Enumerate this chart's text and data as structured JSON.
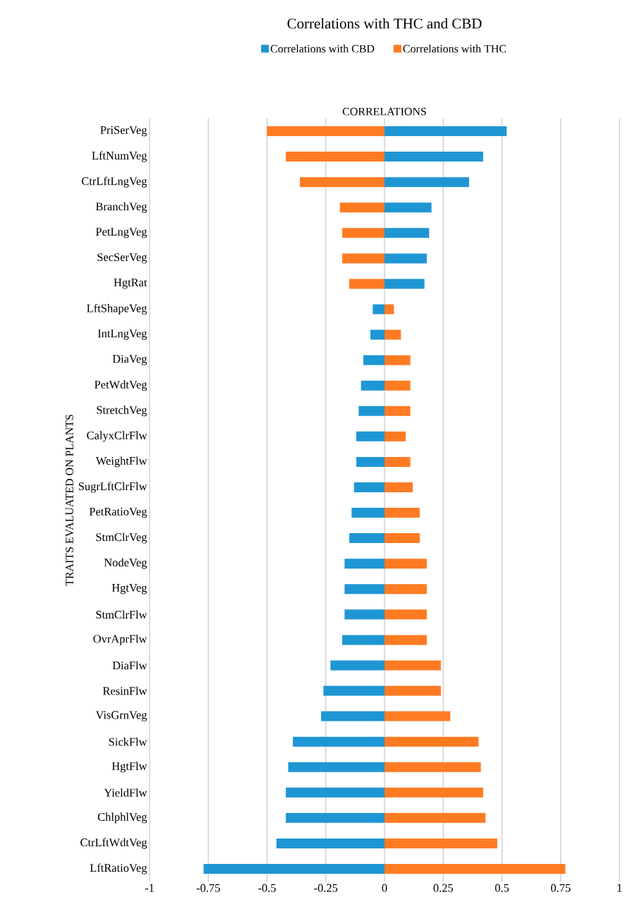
{
  "chart_data": {
    "type": "bar",
    "orientation": "horizontal",
    "title": "Correlations with THC and CBD",
    "xlabel": "CORRELATIONS",
    "ylabel": "TRAITS EVALUATED ON PLANTS",
    "categories": [
      "PriSerVeg",
      "LftNumVeg",
      "CtrLftLngVeg",
      "BranchVeg",
      "PetLngVeg",
      "SecSerVeg",
      "HgtRat",
      "LftShapeVeg",
      "IntLngVeg",
      "DiaVeg",
      "PetWdtVeg",
      "StretchVeg",
      "CalyxClrFlw",
      "WeightFlw",
      "SugrLftClrFlw",
      "PetRatioVeg",
      "StmClrVeg",
      "NodeVeg",
      "HgtVeg",
      "StmClrFlw",
      "OvrAprFlw",
      "DiaFlw",
      "ResinFlw",
      "VisGrnVeg",
      "SickFlw",
      "HgtFlw",
      "YieldFlw",
      "ChlphlVeg",
      "CtrLftWdtVeg",
      "LftRatioVeg"
    ],
    "series": [
      {
        "name": "Correlations with CBD",
        "color": "#1f96d4",
        "values": [
          0.52,
          0.42,
          0.36,
          0.2,
          0.19,
          0.18,
          0.17,
          -0.05,
          -0.06,
          -0.09,
          -0.1,
          -0.11,
          -0.12,
          -0.12,
          -0.13,
          -0.14,
          -0.15,
          -0.17,
          -0.17,
          -0.17,
          -0.18,
          -0.23,
          -0.26,
          -0.27,
          -0.39,
          -0.41,
          -0.42,
          -0.42,
          -0.46,
          -0.77
        ]
      },
      {
        "name": "Correlations with THC",
        "color": "#ff7b22",
        "values": [
          -0.5,
          -0.42,
          -0.36,
          -0.19,
          -0.18,
          -0.18,
          -0.15,
          0.04,
          0.07,
          0.11,
          0.11,
          0.11,
          0.09,
          0.11,
          0.12,
          0.15,
          0.15,
          0.18,
          0.18,
          0.18,
          0.18,
          0.24,
          0.24,
          0.28,
          0.4,
          0.41,
          0.42,
          0.43,
          0.48,
          0.77
        ]
      }
    ],
    "stacked": true,
    "xlim": [
      -1,
      1
    ],
    "xticks": [
      -1,
      -0.75,
      -0.5,
      -0.25,
      0,
      0.25,
      0.5,
      0.75,
      1
    ],
    "grid": "x",
    "legend": "top"
  }
}
